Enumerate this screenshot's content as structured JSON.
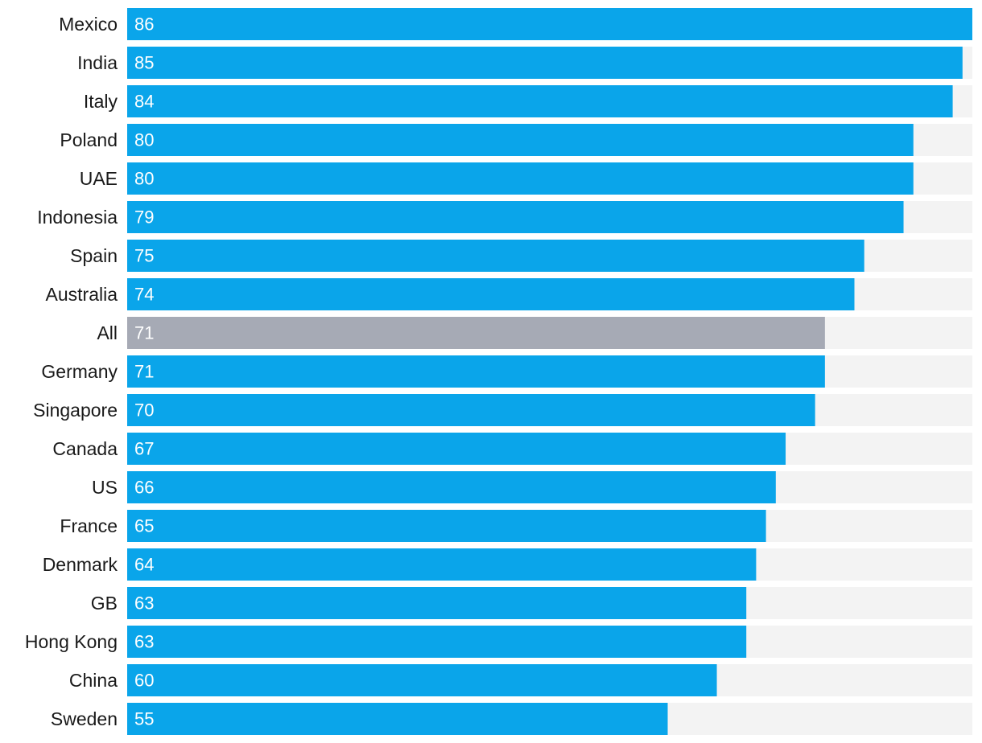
{
  "chart_data": {
    "type": "bar",
    "orientation": "horizontal",
    "categories": [
      "Mexico",
      "India",
      "Italy",
      "Poland",
      "UAE",
      "Indonesia",
      "Spain",
      "Australia",
      "All",
      "Germany",
      "Singapore",
      "Canada",
      "US",
      "France",
      "Denmark",
      "GB",
      "Hong Kong",
      "China",
      "Sweden"
    ],
    "values": [
      86,
      85,
      84,
      80,
      80,
      79,
      75,
      74,
      71,
      71,
      70,
      67,
      66,
      65,
      64,
      63,
      63,
      60,
      55
    ],
    "highlight_category": "All",
    "xlim": [
      0,
      86
    ],
    "grid": false,
    "legend": "none",
    "colors": {
      "bar": "#0aa5ea",
      "highlight": "#a6aab5",
      "track": "#f3f3f3",
      "value_text": "#ffffff",
      "label_text": "#1a1a1a"
    }
  }
}
